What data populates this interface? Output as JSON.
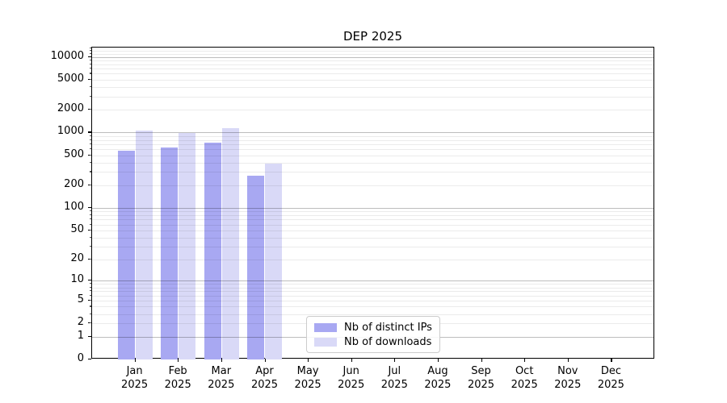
{
  "chart_data": {
    "type": "bar",
    "title": "DEP 2025",
    "categories": [
      "Jan",
      "Feb",
      "Mar",
      "Apr",
      "May",
      "Jun",
      "Jul",
      "Aug",
      "Sep",
      "Oct",
      "Nov",
      "Dec"
    ],
    "category_year": "2025",
    "series": [
      {
        "name": "Nb of distinct IPs",
        "color": "#a8a8f2",
        "values": [
          580,
          640,
          740,
          265,
          null,
          null,
          null,
          null,
          null,
          null,
          null,
          null
        ]
      },
      {
        "name": "Nb of downloads",
        "color": "#d9d9f7",
        "values": [
          1050,
          980,
          1140,
          385,
          null,
          null,
          null,
          null,
          null,
          null,
          null,
          null
        ]
      }
    ],
    "xlabel": "",
    "ylabel": "",
    "y_scale": "log10(value+1)",
    "y_ticks": [
      0,
      1,
      2,
      5,
      10,
      20,
      50,
      100,
      200,
      500,
      1000,
      2000,
      5000,
      10000
    ],
    "y_major_gridlines": [
      1,
      10,
      100,
      1000,
      10000
    ],
    "ylim_top": 13300,
    "grid": "major+minor horizontal",
    "legend_position": "lower center"
  }
}
